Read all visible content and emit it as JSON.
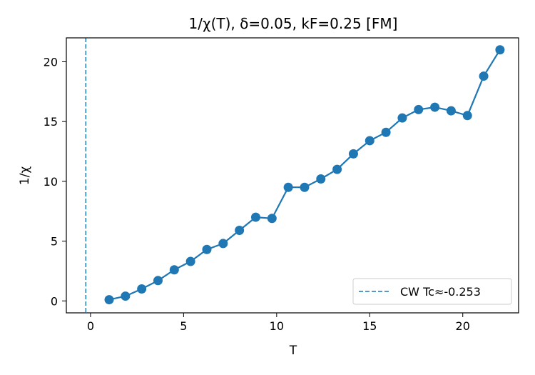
{
  "chart_data": {
    "type": "line",
    "title": "1/χ(T), δ=0.05, kF=0.25  [FM]",
    "xlabel": "T",
    "ylabel": "1/χ",
    "xlim": [
      -1.3,
      23.0
    ],
    "ylim": [
      -1.0,
      22.0
    ],
    "xticks": [
      0,
      5,
      10,
      15,
      20
    ],
    "yticks": [
      0,
      5,
      10,
      15,
      20
    ],
    "grid": false,
    "legend": "lower-right",
    "series_color": "#1f77b4",
    "series": [
      {
        "x": [
          1.0,
          1.875,
          2.75,
          3.625,
          4.5,
          5.375,
          6.25,
          7.125,
          8.0,
          8.875,
          9.75,
          10.625,
          11.5,
          12.375,
          13.25,
          14.125,
          15.0,
          15.875,
          16.75,
          17.625,
          18.5,
          19.375,
          20.25,
          21.125,
          22.0
        ],
        "y": [
          0.1,
          0.4,
          1.0,
          1.7,
          2.6,
          3.3,
          4.3,
          4.8,
          5.9,
          7.0,
          6.9,
          9.5,
          9.5,
          10.2,
          11.0,
          12.3,
          13.4,
          14.1,
          15.3,
          16.0,
          16.2,
          15.9,
          15.5,
          18.8,
          21.0
        ]
      }
    ],
    "reference_line": {
      "label": "CW Tc≈-0.253",
      "x": -0.253,
      "style": "dashed"
    }
  }
}
